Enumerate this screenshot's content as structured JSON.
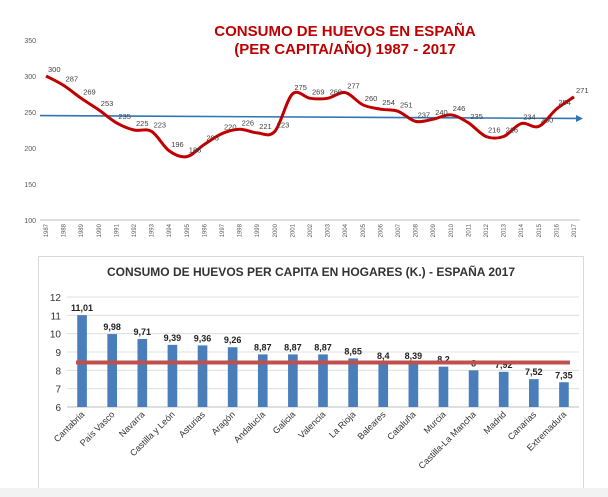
{
  "chart_data": [
    {
      "type": "line",
      "title": "CONSUMO DE HUEVOS EN ESPAÑA",
      "subtitle": "(PER CAPITA/AÑO) 1987 - 2017",
      "x": [
        "1987",
        "1988",
        "1989",
        "1990",
        "1991",
        "1992",
        "1993",
        "1994",
        "1995",
        "1996",
        "1997",
        "1998",
        "1999",
        "2000",
        "2001",
        "2002",
        "2003",
        "2004",
        "2005",
        "2006",
        "2007",
        "2008",
        "2009",
        "2010",
        "2011",
        "2012",
        "2013",
        "2014",
        "2015",
        "2016",
        "2017"
      ],
      "yticks": [
        "350",
        "300",
        "250",
        "200",
        "150",
        "100"
      ],
      "ylim": [
        100,
        350
      ],
      "series": [
        {
          "values": [
            300,
            287,
            269,
            253,
            235,
            225,
            223,
            196,
            188,
            205,
            220,
            226,
            221,
            223,
            275,
            269,
            269,
            277,
            260,
            254,
            251,
            237,
            240,
            246,
            235,
            216,
            216,
            234,
            230,
            254,
            271
          ],
          "labels": [
            "300",
            "287",
            "269",
            "253",
            "235",
            "225",
            "223",
            "196",
            "188",
            "205",
            "220",
            "226",
            "221",
            "223",
            "275",
            "269",
            "269",
            "277",
            "260",
            "254",
            "251",
            "237",
            "240",
            "246",
            "235",
            "216",
            "216",
            "234",
            "230",
            "254",
            "271"
          ],
          "color": "#c00000"
        }
      ],
      "trend": {
        "start": 245,
        "end": 241,
        "color": "#2e75b6"
      },
      "title_color": "#c00000",
      "grid": false
    },
    {
      "type": "bar",
      "title": "CONSUMO DE HUEVOS PER CAPITA EN HOGARES (K.) - ESPAÑA 2017",
      "categories": [
        "Cantabria",
        "País Vasco",
        "Navarra",
        "Castilla y León",
        "Asturias",
        "Aragón",
        "Andalucía",
        "Galicia",
        "Valencia",
        "La Rioja",
        "Baleares",
        "Cataluña",
        "Murcia",
        "Castilla-La Mancha",
        "Madrid",
        "Canarias",
        "Extremadura"
      ],
      "values": [
        11.01,
        9.98,
        9.71,
        9.39,
        9.36,
        9.26,
        8.87,
        8.87,
        8.87,
        8.65,
        8.4,
        8.39,
        8.2,
        8,
        7.92,
        7.52,
        7.35
      ],
      "value_labels": [
        "11,01",
        "9,98",
        "9,71",
        "9,39",
        "9,36",
        "9,26",
        "8,87",
        "8,87",
        "8,87",
        "8,65",
        "8,4",
        "8,39",
        "8,2",
        "8",
        "7,92",
        "7,52",
        "7,35"
      ],
      "yticks": [
        "12",
        "11",
        "10",
        "9",
        "8",
        "7",
        "6"
      ],
      "ylim": [
        6,
        12
      ],
      "average_line": 8.43,
      "bar_color": "#4a7ebb",
      "average_color": "#c0504d",
      "grid": true
    }
  ]
}
